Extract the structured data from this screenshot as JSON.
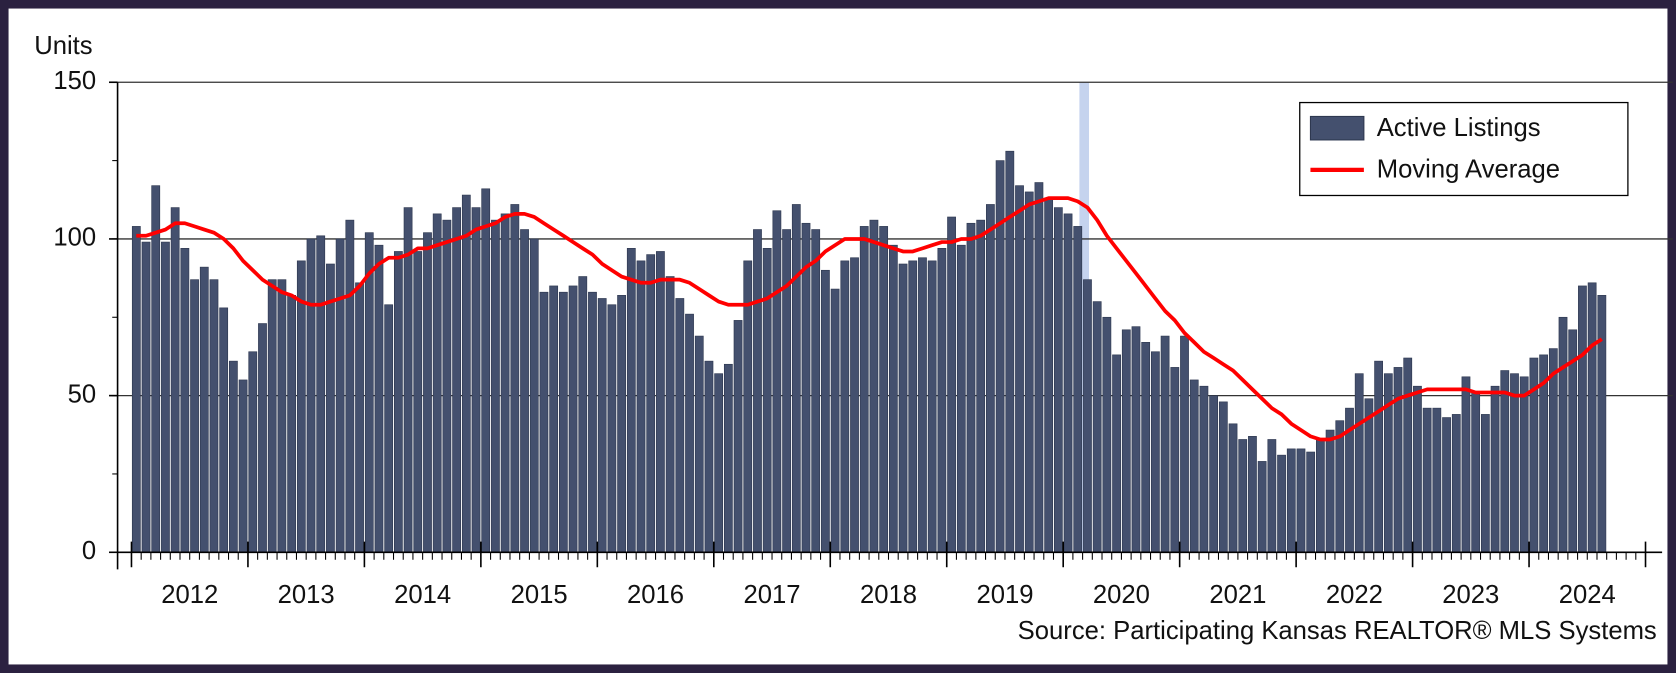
{
  "chart_data": {
    "type": "bar_line",
    "y_axis_label": "Units",
    "source": "Source: Participating Kansas REALTOR® MLS Systems",
    "x_labels": [
      "2012",
      "2013",
      "2014",
      "2015",
      "2016",
      "2017",
      "2018",
      "2019",
      "2020",
      "2021",
      "2022",
      "2023",
      "2024"
    ],
    "ylim": [
      0,
      150
    ],
    "yticks": [
      0,
      50,
      100,
      150
    ],
    "grid": true,
    "legend": "upper right",
    "series": [
      {
        "name": "Active Listings",
        "color": "#44506e",
        "values": [
          104,
          99,
          117,
          99,
          110,
          97,
          87,
          91,
          87,
          78,
          61,
          55,
          64,
          73,
          87,
          87,
          82,
          93,
          100,
          101,
          92,
          100,
          106,
          86,
          102,
          98,
          79,
          96,
          110,
          96,
          102,
          108,
          106,
          110,
          114,
          110,
          116,
          106,
          108,
          111,
          103,
          100,
          83,
          85,
          83,
          85,
          88,
          83,
          81,
          79,
          82,
          97,
          93,
          95,
          96,
          88,
          81,
          76,
          69,
          61,
          57,
          60,
          74,
          93,
          103,
          97,
          109,
          103,
          111,
          105,
          103,
          90,
          84,
          93,
          94,
          104,
          106,
          104,
          98,
          92,
          93,
          94,
          93,
          97,
          107,
          98,
          105,
          106,
          111,
          125,
          128,
          117,
          115,
          118,
          113,
          110,
          108,
          104,
          87,
          80,
          75,
          63,
          71,
          72,
          67,
          64,
          69,
          59,
          69,
          55,
          53,
          50,
          48,
          41,
          36,
          37,
          29,
          36,
          31,
          33,
          33,
          32,
          36,
          39,
          42,
          46,
          57,
          49,
          61,
          57,
          59,
          62,
          53,
          46,
          46,
          43,
          44,
          56,
          51,
          44,
          53,
          58,
          57,
          56,
          62,
          63,
          65,
          75,
          71,
          85,
          86,
          82
        ]
      },
      {
        "name": "Moving Average",
        "color": "#ff0000",
        "values": [
          101,
          101,
          102,
          103,
          105,
          105,
          104,
          103,
          102,
          100,
          97,
          93,
          90,
          87,
          85,
          83,
          82,
          80,
          79,
          79,
          80,
          81,
          82,
          85,
          89,
          92,
          94,
          94,
          95,
          97,
          97,
          98,
          99,
          100,
          101,
          103,
          104,
          105,
          107,
          108,
          108,
          107,
          105,
          103,
          101,
          99,
          97,
          95,
          92,
          90,
          88,
          87,
          86,
          86,
          87,
          87,
          87,
          86,
          84,
          82,
          80,
          79,
          79,
          79,
          80,
          81,
          83,
          85,
          88,
          91,
          93,
          96,
          98,
          100,
          100,
          100,
          99,
          98,
          97,
          96,
          96,
          97,
          98,
          99,
          99,
          100,
          100,
          101,
          103,
          105,
          107,
          109,
          111,
          112,
          113,
          113,
          113,
          112,
          110,
          106,
          101,
          97,
          93,
          89,
          85,
          81,
          77,
          74,
          70,
          67,
          64,
          62,
          60,
          58,
          55,
          52,
          49,
          46,
          44,
          41,
          39,
          37,
          36,
          36,
          37,
          39,
          41,
          43,
          45,
          47,
          49,
          50,
          51,
          52,
          52,
          52,
          52,
          52,
          51,
          51,
          51,
          51,
          50,
          50,
          52,
          54,
          57,
          59,
          61,
          63,
          66,
          68
        ]
      }
    ]
  }
}
